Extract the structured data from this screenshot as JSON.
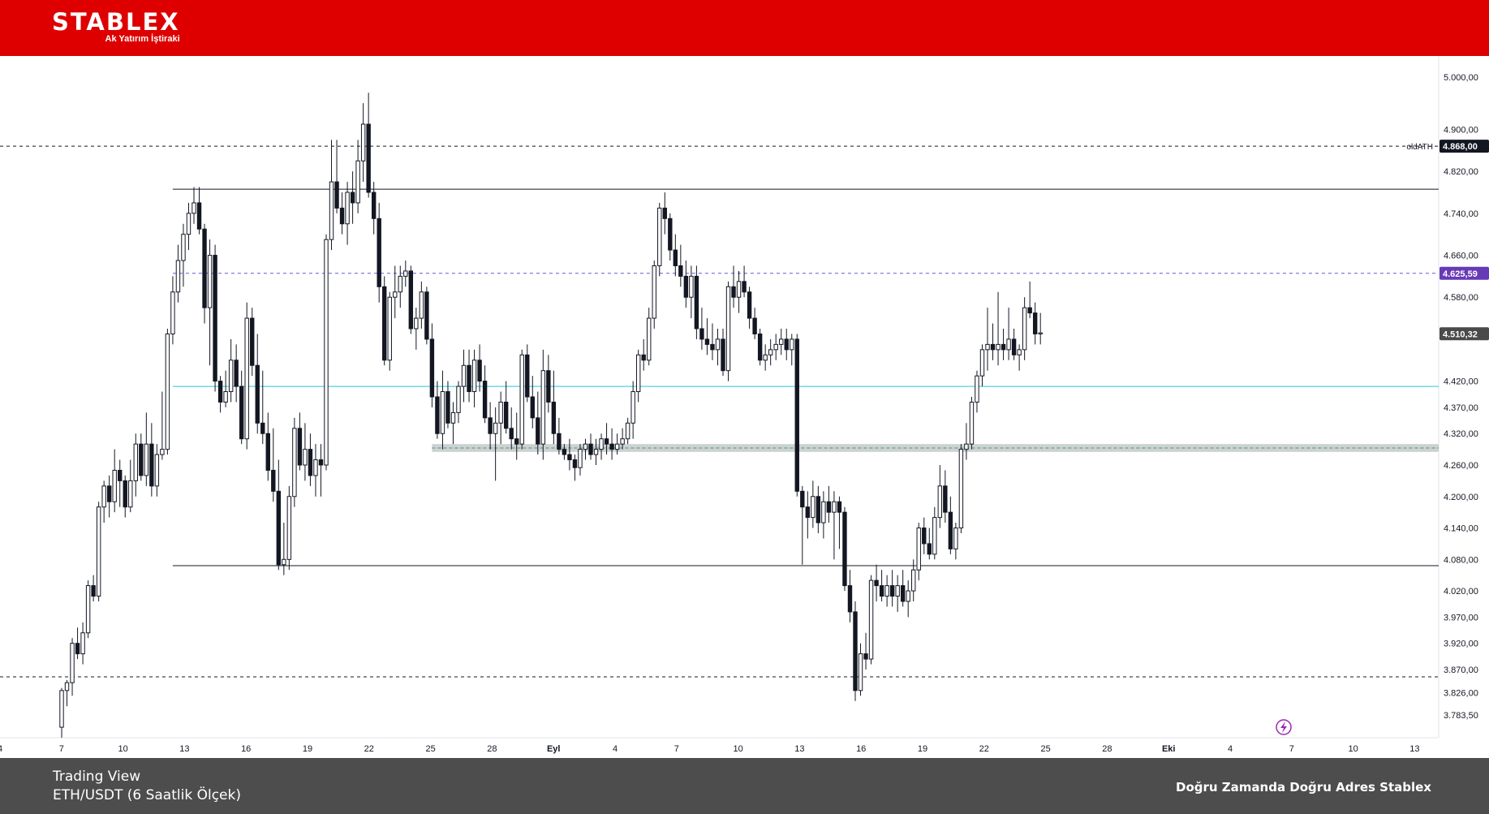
{
  "header": {
    "brand": "STABLEX",
    "subtitle": "Ak Yatırım İştiraki",
    "bg_color": "#de0000"
  },
  "footer": {
    "source": "Trading View",
    "pair": "ETH/USDT (6 Saatlik Ölçek)",
    "slogan": "Doğru Zamanda Doğru Adres Stablex",
    "bg_color": "#4d4d4d"
  },
  "chart_data": {
    "type": "candlestick",
    "ylim": [
      3740,
      5040
    ],
    "y_ticks": [
      "5.000,00",
      "4.900,00",
      "4.820,00",
      "4.740,00",
      "4.660,00",
      "4.580,00",
      "4.420,00",
      "4.370,00",
      "4.320,00",
      "4.260,00",
      "4.200,00",
      "4.140,00",
      "4.080,00",
      "4.020,00",
      "3.970,00",
      "3.920,00",
      "3.870,00",
      "3.826,00",
      "3.783,50"
    ],
    "x_ticks": [
      "4",
      "7",
      "10",
      "13",
      "16",
      "19",
      "22",
      "25",
      "28",
      "Eyl",
      "4",
      "7",
      "10",
      "13",
      "16",
      "19",
      "22",
      "25",
      "28",
      "Eki",
      "4",
      "7",
      "10",
      "13"
    ],
    "price_tags": [
      {
        "label": "4.868,00",
        "value": 4868,
        "color": "#131722",
        "annotation": "oldATH"
      },
      {
        "label": "4.625,59",
        "value": 4625.59,
        "color": "#673ab7",
        "annotation": ""
      },
      {
        "label": "4.510,32",
        "value": 4510.32,
        "color": "#4a4a4a",
        "annotation": ""
      }
    ],
    "levels": [
      {
        "value": 4868,
        "style": "dashed",
        "color": "#131722",
        "extent": "full"
      },
      {
        "value": 4786,
        "style": "solid",
        "color": "#131722",
        "extent": "from-mid-aug"
      },
      {
        "value": 4625.59,
        "style": "dashed",
        "color": "#5b5bd6",
        "extent": "from-mid-aug"
      },
      {
        "value": 4410,
        "style": "solid",
        "color": "#26c6da",
        "extent": "from-mid-aug"
      },
      {
        "value": 4068,
        "style": "solid",
        "color": "#131722",
        "extent": "from-mid-aug"
      },
      {
        "value": 3856,
        "style": "dashed",
        "color": "#131722",
        "extent": "full"
      }
    ],
    "zone": {
      "from": 4285,
      "to": 4300,
      "color": "#c8c8c8"
    },
    "candles": [
      [
        3760,
        3835,
        3740,
        3830
      ],
      [
        3830,
        3850,
        3800,
        3845
      ],
      [
        3845,
        3930,
        3820,
        3920
      ],
      [
        3920,
        3950,
        3890,
        3900
      ],
      [
        3900,
        3960,
        3880,
        3940
      ],
      [
        3940,
        4040,
        3930,
        4030
      ],
      [
        4030,
        4050,
        4000,
        4010
      ],
      [
        4010,
        4190,
        4000,
        4180
      ],
      [
        4180,
        4230,
        4150,
        4220
      ],
      [
        4220,
        4240,
        4160,
        4190
      ],
      [
        4190,
        4290,
        4170,
        4250
      ],
      [
        4250,
        4270,
        4180,
        4230
      ],
      [
        4230,
        4240,
        4160,
        4180
      ],
      [
        4180,
        4270,
        4170,
        4230
      ],
      [
        4230,
        4320,
        4200,
        4300
      ],
      [
        4300,
        4320,
        4230,
        4240
      ],
      [
        4240,
        4360,
        4220,
        4300
      ],
      [
        4300,
        4340,
        4200,
        4220
      ],
      [
        4220,
        4300,
        4200,
        4280
      ],
      [
        4280,
        4400,
        4270,
        4290
      ],
      [
        4290,
        4520,
        4280,
        4510
      ],
      [
        4510,
        4620,
        4490,
        4590
      ],
      [
        4590,
        4680,
        4570,
        4650
      ],
      [
        4650,
        4720,
        4600,
        4700
      ],
      [
        4700,
        4760,
        4670,
        4740
      ],
      [
        4740,
        4790,
        4720,
        4760
      ],
      [
        4760,
        4790,
        4700,
        4710
      ],
      [
        4710,
        4720,
        4530,
        4560
      ],
      [
        4560,
        4690,
        4450,
        4660
      ],
      [
        4660,
        4680,
        4400,
        4420
      ],
      [
        4420,
        4430,
        4360,
        4380
      ],
      [
        4380,
        4440,
        4370,
        4400
      ],
      [
        4400,
        4500,
        4380,
        4460
      ],
      [
        4460,
        4490,
        4380,
        4410
      ],
      [
        4410,
        4440,
        4300,
        4310
      ],
      [
        4310,
        4570,
        4290,
        4540
      ],
      [
        4540,
        4560,
        4430,
        4450
      ],
      [
        4450,
        4510,
        4320,
        4340
      ],
      [
        4340,
        4440,
        4300,
        4320
      ],
      [
        4320,
        4360,
        4230,
        4250
      ],
      [
        4250,
        4330,
        4190,
        4210
      ],
      [
        4210,
        4270,
        4060,
        4070
      ],
      [
        4070,
        4150,
        4050,
        4080
      ],
      [
        4080,
        4220,
        4060,
        4200
      ],
      [
        4200,
        4350,
        4180,
        4330
      ],
      [
        4330,
        4360,
        4250,
        4260
      ],
      [
        4260,
        4340,
        4230,
        4290
      ],
      [
        4290,
        4320,
        4220,
        4240
      ],
      [
        4240,
        4300,
        4200,
        4270
      ],
      [
        4270,
        4300,
        4200,
        4260
      ],
      [
        4260,
        4700,
        4250,
        4690
      ],
      [
        4690,
        4880,
        4670,
        4800
      ],
      [
        4800,
        4880,
        4740,
        4750
      ],
      [
        4750,
        4780,
        4700,
        4720
      ],
      [
        4720,
        4800,
        4680,
        4780
      ],
      [
        4780,
        4820,
        4720,
        4760
      ],
      [
        4760,
        4880,
        4740,
        4840
      ],
      [
        4840,
        4950,
        4800,
        4910
      ],
      [
        4910,
        4970,
        4770,
        4780
      ],
      [
        4780,
        4800,
        4700,
        4730
      ],
      [
        4730,
        4760,
        4570,
        4600
      ],
      [
        4600,
        4620,
        4450,
        4460
      ],
      [
        4460,
        4590,
        4440,
        4580
      ],
      [
        4580,
        4640,
        4540,
        4590
      ],
      [
        4590,
        4640,
        4560,
        4620
      ],
      [
        4620,
        4650,
        4600,
        4630
      ],
      [
        4630,
        4640,
        4510,
        4520
      ],
      [
        4520,
        4560,
        4480,
        4540
      ],
      [
        4540,
        4610,
        4520,
        4590
      ],
      [
        4590,
        4600,
        4490,
        4500
      ],
      [
        4500,
        4530,
        4370,
        4390
      ],
      [
        4390,
        4420,
        4310,
        4320
      ],
      [
        4320,
        4440,
        4290,
        4400
      ],
      [
        4400,
        4420,
        4330,
        4340
      ],
      [
        4340,
        4380,
        4300,
        4360
      ],
      [
        4360,
        4420,
        4340,
        4410
      ],
      [
        4410,
        4480,
        4380,
        4450
      ],
      [
        4450,
        4480,
        4380,
        4400
      ],
      [
        4400,
        4480,
        4370,
        4460
      ],
      [
        4460,
        4490,
        4400,
        4420
      ],
      [
        4420,
        4450,
        4340,
        4350
      ],
      [
        4350,
        4380,
        4290,
        4320
      ],
      [
        4320,
        4370,
        4230,
        4340
      ],
      [
        4340,
        4400,
        4300,
        4380
      ],
      [
        4380,
        4420,
        4320,
        4330
      ],
      [
        4330,
        4370,
        4290,
        4310
      ],
      [
        4310,
        4360,
        4270,
        4300
      ],
      [
        4300,
        4480,
        4290,
        4470
      ],
      [
        4470,
        4490,
        4380,
        4390
      ],
      [
        4390,
        4430,
        4330,
        4350
      ],
      [
        4350,
        4400,
        4280,
        4300
      ],
      [
        4300,
        4480,
        4270,
        4440
      ],
      [
        4440,
        4470,
        4360,
        4380
      ],
      [
        4380,
        4440,
        4300,
        4320
      ],
      [
        4320,
        4350,
        4280,
        4290
      ],
      [
        4290,
        4300,
        4270,
        4280
      ],
      [
        4280,
        4310,
        4250,
        4270
      ],
      [
        4270,
        4280,
        4230,
        4255
      ],
      [
        4255,
        4300,
        4240,
        4290
      ],
      [
        4290,
        4310,
        4270,
        4300
      ],
      [
        4300,
        4320,
        4270,
        4280
      ],
      [
        4280,
        4310,
        4260,
        4290
      ],
      [
        4290,
        4320,
        4270,
        4310
      ],
      [
        4310,
        4340,
        4280,
        4300
      ],
      [
        4300,
        4330,
        4270,
        4290
      ],
      [
        4290,
        4320,
        4280,
        4300
      ],
      [
        4300,
        4330,
        4290,
        4310
      ],
      [
        4310,
        4350,
        4300,
        4340
      ],
      [
        4340,
        4420,
        4310,
        4400
      ],
      [
        4400,
        4480,
        4380,
        4470
      ],
      [
        4470,
        4500,
        4440,
        4460
      ],
      [
        4460,
        4560,
        4450,
        4540
      ],
      [
        4540,
        4650,
        4520,
        4640
      ],
      [
        4640,
        4760,
        4620,
        4750
      ],
      [
        4750,
        4780,
        4700,
        4730
      ],
      [
        4730,
        4740,
        4650,
        4670
      ],
      [
        4670,
        4700,
        4620,
        4640
      ],
      [
        4640,
        4680,
        4600,
        4620
      ],
      [
        4620,
        4650,
        4560,
        4580
      ],
      [
        4580,
        4640,
        4540,
        4620
      ],
      [
        4620,
        4640,
        4500,
        4520
      ],
      [
        4520,
        4560,
        4480,
        4500
      ],
      [
        4500,
        4540,
        4470,
        4490
      ],
      [
        4490,
        4530,
        4460,
        4480
      ],
      [
        4480,
        4520,
        4450,
        4500
      ],
      [
        4500,
        4520,
        4430,
        4440
      ],
      [
        4440,
        4610,
        4420,
        4600
      ],
      [
        4600,
        4640,
        4560,
        4580
      ],
      [
        4580,
        4630,
        4550,
        4610
      ],
      [
        4610,
        4640,
        4580,
        4590
      ],
      [
        4590,
        4600,
        4520,
        4540
      ],
      [
        4540,
        4560,
        4500,
        4510
      ],
      [
        4510,
        4520,
        4450,
        4460
      ],
      [
        4460,
        4490,
        4440,
        4470
      ],
      [
        4470,
        4500,
        4450,
        4480
      ],
      [
        4480,
        4510,
        4460,
        4490
      ],
      [
        4490,
        4520,
        4470,
        4500
      ],
      [
        4500,
        4520,
        4460,
        4480
      ],
      [
        4480,
        4510,
        4450,
        4500
      ],
      [
        4500,
        4510,
        4200,
        4210
      ],
      [
        4210,
        4220,
        4070,
        4180
      ],
      [
        4180,
        4210,
        4120,
        4160
      ],
      [
        4160,
        4230,
        4140,
        4200
      ],
      [
        4200,
        4220,
        4130,
        4150
      ],
      [
        4150,
        4210,
        4120,
        4190
      ],
      [
        4190,
        4220,
        4150,
        4170
      ],
      [
        4170,
        4210,
        4080,
        4190
      ],
      [
        4190,
        4200,
        4100,
        4170
      ],
      [
        4170,
        4180,
        4020,
        4030
      ],
      [
        4030,
        4060,
        3960,
        3980
      ],
      [
        3980,
        4000,
        3810,
        3830
      ],
      [
        3830,
        3920,
        3820,
        3900
      ],
      [
        3900,
        3940,
        3870,
        3890
      ],
      [
        3890,
        4050,
        3880,
        4040
      ],
      [
        4040,
        4070,
        4000,
        4030
      ],
      [
        4030,
        4060,
        4000,
        4010
      ],
      [
        4010,
        4050,
        3990,
        4030
      ],
      [
        4030,
        4060,
        3990,
        4010
      ],
      [
        4010,
        4050,
        3980,
        4030
      ],
      [
        4030,
        4060,
        3990,
        4000
      ],
      [
        4000,
        4040,
        3970,
        4020
      ],
      [
        4020,
        4080,
        4000,
        4060
      ],
      [
        4060,
        4150,
        4040,
        4140
      ],
      [
        4140,
        4160,
        4090,
        4110
      ],
      [
        4110,
        4140,
        4080,
        4090
      ],
      [
        4090,
        4180,
        4080,
        4160
      ],
      [
        4160,
        4260,
        4140,
        4220
      ],
      [
        4220,
        4250,
        4150,
        4170
      ],
      [
        4170,
        4200,
        4090,
        4100
      ],
      [
        4100,
        4150,
        4080,
        4140
      ],
      [
        4140,
        4300,
        4130,
        4290
      ],
      [
        4290,
        4340,
        4270,
        4300
      ],
      [
        4300,
        4390,
        4290,
        4380
      ],
      [
        4380,
        4440,
        4360,
        4430
      ],
      [
        4430,
        4490,
        4410,
        4480
      ],
      [
        4480,
        4560,
        4440,
        4490
      ],
      [
        4490,
        4530,
        4460,
        4480
      ],
      [
        4480,
        4590,
        4450,
        4490
      ],
      [
        4490,
        4520,
        4460,
        4480
      ],
      [
        4480,
        4560,
        4460,
        4500
      ],
      [
        4500,
        4520,
        4460,
        4470
      ],
      [
        4470,
        4490,
        4440,
        4480
      ],
      [
        4480,
        4580,
        4460,
        4560
      ],
      [
        4560,
        4610,
        4540,
        4550
      ],
      [
        4550,
        4570,
        4490,
        4510
      ],
      [
        4510,
        4550,
        4490,
        4512
      ]
    ]
  }
}
